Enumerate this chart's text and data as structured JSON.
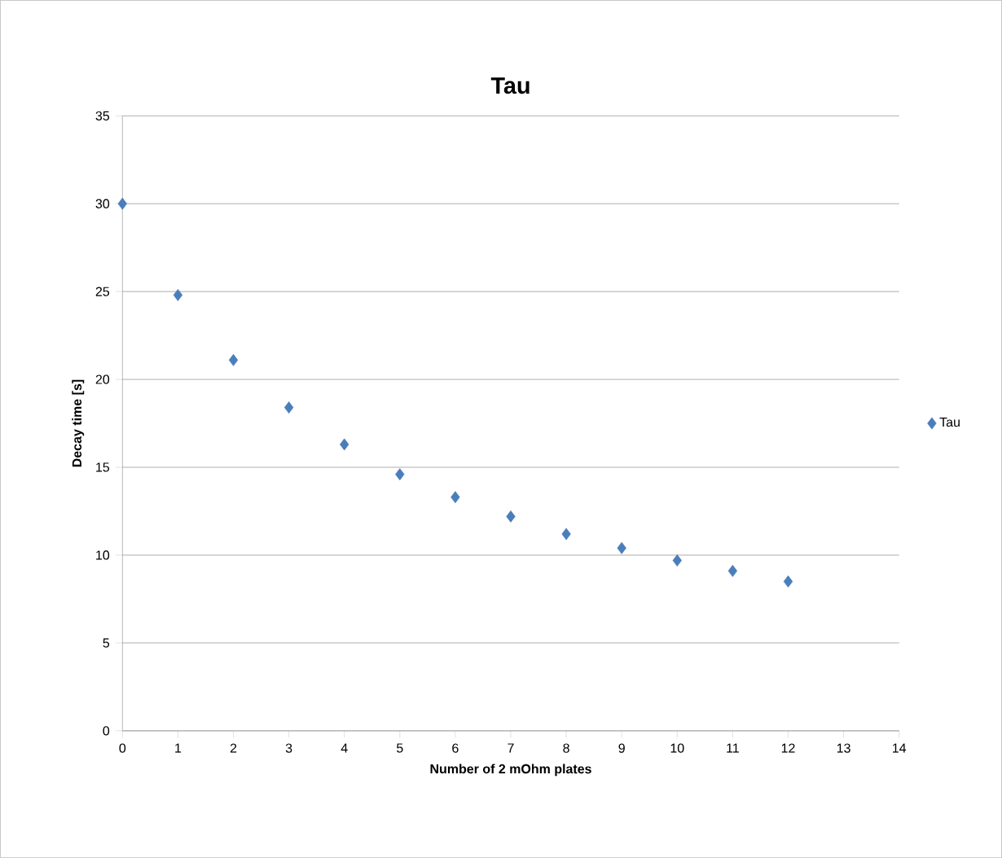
{
  "chart_data": {
    "type": "scatter",
    "title": "Tau",
    "xlabel": "Number of 2 mOhm plates",
    "ylabel": "Decay time [s]",
    "x": [
      0,
      1,
      2,
      3,
      4,
      5,
      6,
      7,
      8,
      9,
      10,
      11,
      12
    ],
    "series": [
      {
        "name": "Tau",
        "color": "#4a7ebb",
        "values": [
          30,
          24.8,
          21.1,
          18.4,
          16.3,
          14.6,
          13.3,
          12.2,
          11.2,
          10.4,
          9.7,
          9.1,
          8.5
        ]
      }
    ],
    "xlim": [
      0,
      14
    ],
    "xticks": [
      0,
      1,
      2,
      3,
      4,
      5,
      6,
      7,
      8,
      9,
      10,
      11,
      12,
      13,
      14
    ],
    "ylim": [
      0,
      35
    ],
    "yticks": [
      0,
      5,
      10,
      15,
      20,
      25,
      30,
      35
    ],
    "grid": "y",
    "legend": "right",
    "marker": "diamond"
  }
}
